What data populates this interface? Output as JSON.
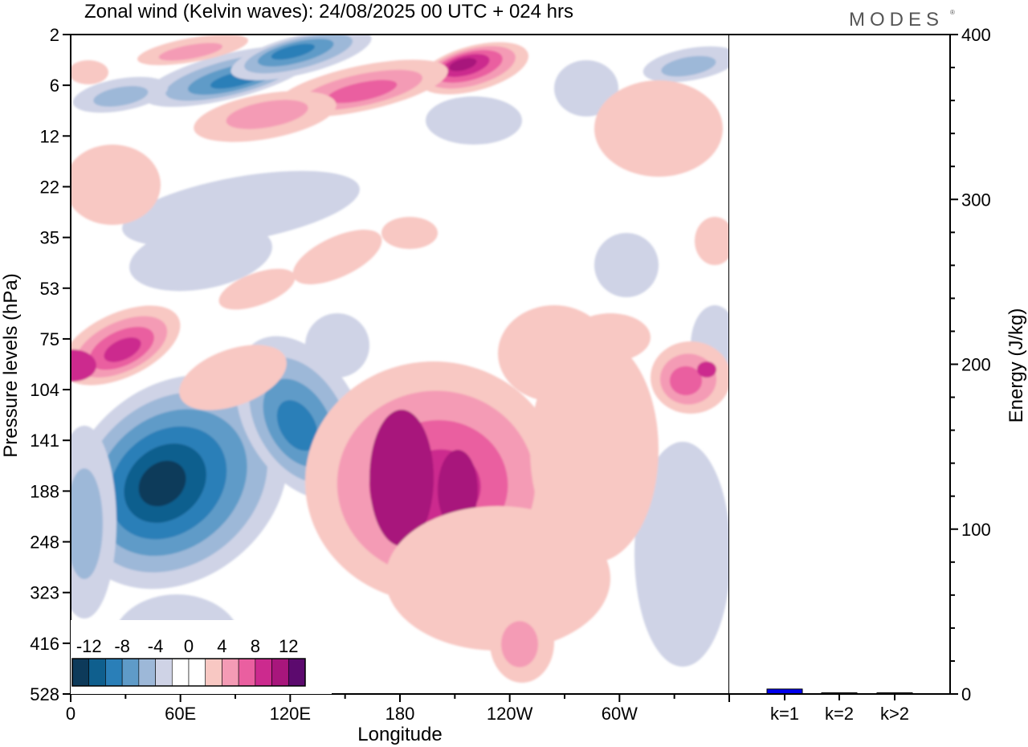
{
  "header": {
    "title": "Zonal wind (Kelvin waves):  24/08/2025  00 UTC  + 024 hrs",
    "brand": "MODES"
  },
  "chart_data": [
    {
      "type": "heatmap",
      "variable": "Zonal wind (Kelvin waves)",
      "xlabel": "Longitude",
      "ylabel": "Pressure levels (hPa)",
      "x_ticks": [
        "0",
        "60E",
        "120E",
        "180",
        "120W",
        "60W"
      ],
      "x_tick_degrees": [
        0,
        60,
        120,
        180,
        240,
        300
      ],
      "xlim": [
        0,
        360
      ],
      "y_ticks": [
        "2",
        "6",
        "12",
        "22",
        "35",
        "53",
        "75",
        "104",
        "141",
        "188",
        "248",
        "323",
        "416",
        "528"
      ],
      "y_order": "top-to-bottom",
      "colorbar": {
        "labels": [
          "-12",
          "-8",
          "-4",
          "0",
          "4",
          "8",
          "12"
        ],
        "levels": [
          -14,
          -12,
          -10,
          -8,
          -6,
          -4,
          -2,
          0,
          2,
          4,
          6,
          8,
          10,
          12,
          14
        ],
        "colors": [
          "#0d3a5a",
          "#0f5f8e",
          "#2a7fb8",
          "#5f9bc8",
          "#9db8d8",
          "#cfd3e6",
          "#ffffff",
          "#ffffff",
          "#f8c8c3",
          "#f49bb5",
          "#ea5fa0",
          "#cc2a8e",
          "#a8167c",
          "#5c0a6e"
        ]
      },
      "features": [
        {
          "sign": "negative",
          "lon": 70,
          "level": "188",
          "value": -14
        },
        {
          "sign": "negative",
          "lon": 124,
          "level": "141",
          "value": -10
        },
        {
          "sign": "negative",
          "lon": 95,
          "level": "6",
          "value": -10
        },
        {
          "sign": "negative",
          "lon": 55,
          "level": "6",
          "value": -8
        },
        {
          "sign": "positive",
          "lon": 182,
          "level": "188",
          "value": 11
        },
        {
          "sign": "positive",
          "lon": 205,
          "level": "188",
          "value": 10
        },
        {
          "sign": "positive",
          "lon": 213,
          "level": "6",
          "value": 11
        },
        {
          "sign": "positive",
          "lon": 10,
          "level": "104",
          "value": 9
        },
        {
          "sign": "positive",
          "lon": 340,
          "level": "104",
          "value": 8
        },
        {
          "sign": "positive",
          "lon": 238,
          "level": "416",
          "value": 5
        }
      ]
    },
    {
      "type": "bar",
      "ylabel": "Energy (J/kg)",
      "categories": [
        "k=1",
        "k=2",
        "k>2"
      ],
      "values": [
        3,
        0.4,
        0.4
      ],
      "ylim": [
        0,
        400
      ],
      "y_ticks": [
        "0",
        "100",
        "200",
        "300",
        "400"
      ],
      "bar_color": "#0000ee"
    }
  ]
}
